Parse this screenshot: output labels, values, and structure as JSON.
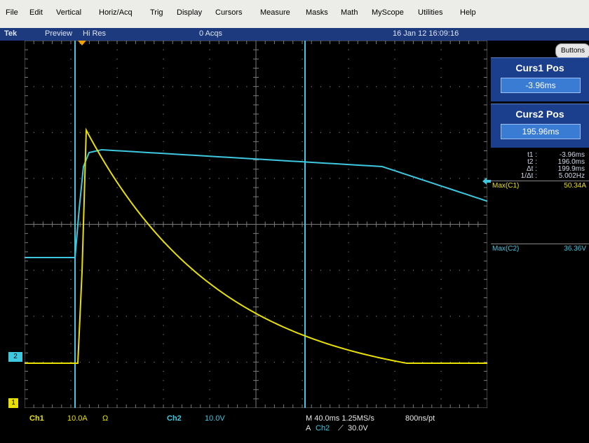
{
  "menu": [
    "File",
    "Edit",
    "Vertical",
    "Horiz/Acq",
    "Trig",
    "Display",
    "Cursors",
    "Measure",
    "Masks",
    "Math",
    "MyScope",
    "Utilities",
    "Help"
  ],
  "status": {
    "brand": "Tek",
    "mode1": "Preview",
    "mode2": "Hi Res",
    "acqs": "0 Acqs",
    "datetime": "16 Jan 12 16:09:16"
  },
  "right": {
    "buttons": "Buttons",
    "c1title": "Curs1 Pos",
    "c1val": "-3.96ms",
    "c2title": "Curs2 Pos",
    "c2val": "195.96ms",
    "meas": [
      {
        "k": "t1 :",
        "v": "-3.96ms"
      },
      {
        "k": "t2 :",
        "v": "196.0ms"
      },
      {
        "k": "Δt :",
        "v": "199.9ms"
      },
      {
        "k": "1/Δt :",
        "v": "5.002Hz"
      }
    ],
    "max1_label": "Max(C1)",
    "max1_val": "50.34A",
    "max2_label": "Max(C2)",
    "max2_val": "36.36V"
  },
  "bottom": {
    "ch1": "Ch1",
    "ch1_scale": "10.0A",
    "ohm": "Ω",
    "ch2": "Ch2",
    "ch2_scale": "10.0V",
    "timebase": "M 40.0ms 1.25MS/s",
    "respt": "800ns/pt",
    "trig_prefix": "A",
    "trig_src": "Ch2",
    "trig_slope": "⟋",
    "trig_level": "30.0V"
  },
  "markers": {
    "ch1": "1",
    "ch2": "2"
  },
  "colors": {
    "ch1": "#e9e000",
    "ch2": "#3ec8e0",
    "cursor": "#3ec8e0",
    "grid": "#7a7a7a",
    "panel": "#1b3f8c"
  }
}
